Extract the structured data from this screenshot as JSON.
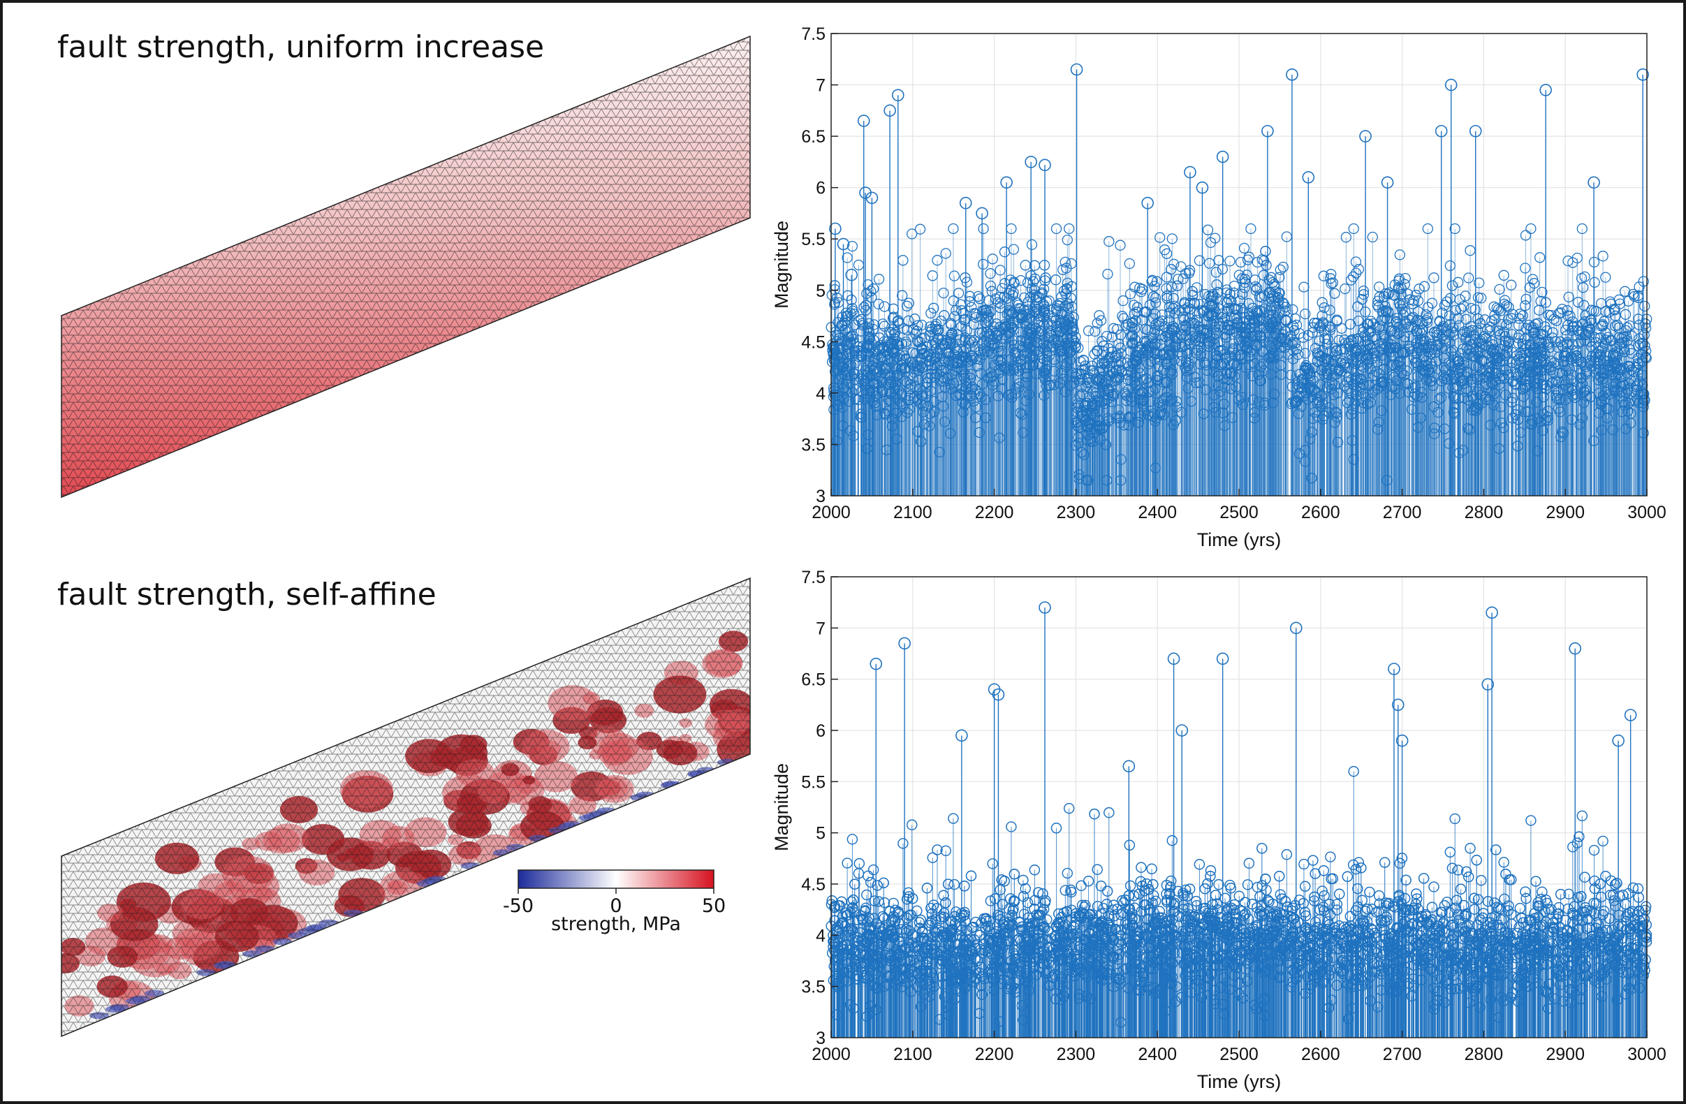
{
  "panels": {
    "top_title": "fault strength, uniform increase",
    "bottom_title": "fault strength, self-affine"
  },
  "colorbar": {
    "label": "strength, MPa",
    "ticks": [
      "-50",
      "0",
      "50"
    ],
    "range": [
      -50,
      50
    ],
    "colors": {
      "low": "#1c2b9a",
      "mid": "#ffffff",
      "high": "#d6121f"
    }
  },
  "styles": {
    "series_color": "#1f72bf",
    "mesh_line_color": "#1a1a1a",
    "grid_color": "#e3e3e3"
  },
  "chart_data": [
    {
      "type": "stem",
      "xlabel": "Time (yrs)",
      "ylabel": "Magnitude",
      "xlim": [
        2000,
        3000
      ],
      "ylim": [
        3,
        7.5
      ],
      "xticks": [
        2000,
        2100,
        2200,
        2300,
        2400,
        2500,
        2600,
        2700,
        2800,
        2900,
        3000
      ],
      "yticks": [
        3,
        3.5,
        4,
        4.5,
        5,
        5.5,
        6,
        6.5,
        7,
        7.5
      ],
      "grid": true,
      "baseline_profile": [
        [
          2000,
          4.4
        ],
        [
          2100,
          4.2
        ],
        [
          2200,
          4.5
        ],
        [
          2295,
          4.6
        ],
        [
          2305,
          3.7
        ],
        [
          2350,
          4.2
        ],
        [
          2450,
          4.6
        ],
        [
          2560,
          4.6
        ],
        [
          2575,
          4.0
        ],
        [
          2600,
          4.2
        ],
        [
          2700,
          4.5
        ],
        [
          2760,
          4.3
        ],
        [
          2900,
          4.3
        ],
        [
          3000,
          4.3
        ]
      ],
      "events_approx_count": 3000,
      "peak_events": [
        {
          "x": 2005,
          "y": 5.6
        },
        {
          "x": 2015,
          "y": 5.45
        },
        {
          "x": 2025,
          "y": 5.15
        },
        {
          "x": 2040,
          "y": 6.65
        },
        {
          "x": 2042,
          "y": 5.95
        },
        {
          "x": 2050,
          "y": 5.9
        },
        {
          "x": 2072,
          "y": 6.75
        },
        {
          "x": 2082,
          "y": 6.9
        },
        {
          "x": 2165,
          "y": 5.85
        },
        {
          "x": 2185,
          "y": 5.75
        },
        {
          "x": 2215,
          "y": 6.05
        },
        {
          "x": 2245,
          "y": 6.25
        },
        {
          "x": 2262,
          "y": 6.22
        },
        {
          "x": 2301,
          "y": 7.15
        },
        {
          "x": 2388,
          "y": 5.85
        },
        {
          "x": 2440,
          "y": 6.15
        },
        {
          "x": 2455,
          "y": 6.0
        },
        {
          "x": 2480,
          "y": 6.3
        },
        {
          "x": 2535,
          "y": 6.55
        },
        {
          "x": 2565,
          "y": 7.1
        },
        {
          "x": 2585,
          "y": 6.1
        },
        {
          "x": 2655,
          "y": 6.5
        },
        {
          "x": 2682,
          "y": 6.05
        },
        {
          "x": 2748,
          "y": 6.55
        },
        {
          "x": 2760,
          "y": 7.0
        },
        {
          "x": 2790,
          "y": 6.55
        },
        {
          "x": 2876,
          "y": 6.95
        },
        {
          "x": 2935,
          "y": 6.05
        },
        {
          "x": 2995,
          "y": 7.1
        }
      ]
    },
    {
      "type": "stem",
      "xlabel": "Time (yrs)",
      "ylabel": "Magnitude",
      "xlim": [
        2000,
        3000
      ],
      "ylim": [
        3,
        7.5
      ],
      "xticks": [
        2000,
        2100,
        2200,
        2300,
        2400,
        2500,
        2600,
        2700,
        2800,
        2900,
        3000
      ],
      "yticks": [
        3,
        3.5,
        4,
        4.5,
        5,
        5.5,
        6,
        6.5,
        7,
        7.5
      ],
      "grid": true,
      "baseline_profile": [
        [
          2000,
          3.9
        ],
        [
          2100,
          3.85
        ],
        [
          2200,
          3.9
        ],
        [
          2300,
          3.9
        ],
        [
          2400,
          3.95
        ],
        [
          2500,
          3.95
        ],
        [
          2600,
          3.9
        ],
        [
          2700,
          3.9
        ],
        [
          2800,
          3.85
        ],
        [
          2900,
          3.9
        ],
        [
          3000,
          3.95
        ]
      ],
      "events_approx_count": 6000,
      "peak_events": [
        {
          "x": 2055,
          "y": 6.65
        },
        {
          "x": 2090,
          "y": 6.85
        },
        {
          "x": 2160,
          "y": 5.95
        },
        {
          "x": 2200,
          "y": 6.4
        },
        {
          "x": 2205,
          "y": 6.35
        },
        {
          "x": 2262,
          "y": 7.2
        },
        {
          "x": 2365,
          "y": 5.65
        },
        {
          "x": 2420,
          "y": 6.7
        },
        {
          "x": 2430,
          "y": 6.0
        },
        {
          "x": 2480,
          "y": 6.7
        },
        {
          "x": 2570,
          "y": 7.0
        },
        {
          "x": 2690,
          "y": 6.6
        },
        {
          "x": 2695,
          "y": 6.25
        },
        {
          "x": 2700,
          "y": 5.9
        },
        {
          "x": 2805,
          "y": 6.45
        },
        {
          "x": 2810,
          "y": 7.15
        },
        {
          "x": 2912,
          "y": 6.8
        },
        {
          "x": 2965,
          "y": 5.9
        },
        {
          "x": 2980,
          "y": 6.15
        }
      ]
    }
  ]
}
